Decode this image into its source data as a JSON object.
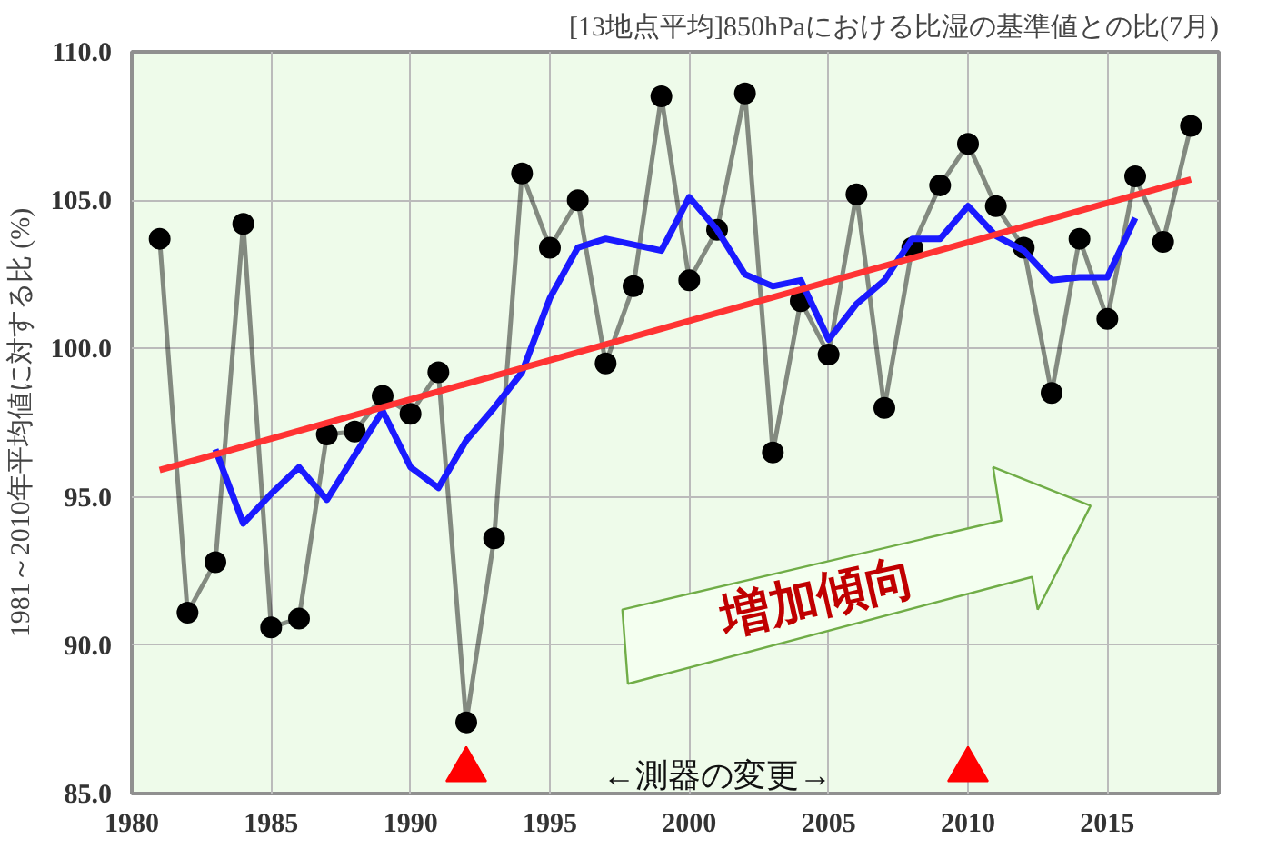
{
  "chart_data": {
    "type": "line",
    "title": "[13地点平均]850hPaにおける比湿の基準値との比(7月)",
    "ylabel": "1981～2010年平均値に対する比 (%)",
    "xlim": [
      1980,
      2019
    ],
    "xticks": [
      1980,
      1985,
      1990,
      1995,
      2000,
      2005,
      2010,
      2015
    ],
    "ylim": [
      85,
      110
    ],
    "yticks": [
      {
        "value": 85,
        "label": "85.0"
      },
      {
        "value": 90,
        "label": "90.0"
      },
      {
        "value": 95,
        "label": "95.0"
      },
      {
        "value": 100,
        "label": "100.0"
      },
      {
        "value": 105,
        "label": "105.0"
      },
      {
        "value": 110,
        "label": "110.0"
      }
    ],
    "grid": true,
    "line_style": "solid",
    "series": [
      {
        "color": "#000000",
        "marker": "circle",
        "x": [
          1981,
          1982,
          1983,
          1984,
          1985,
          1986,
          1987,
          1988,
          1989,
          1990,
          1991,
          1992,
          1993,
          1994,
          1995,
          1996,
          1997,
          1998,
          1999,
          2000,
          2001,
          2002,
          2003,
          2004,
          2005,
          2006,
          2007,
          2008,
          2009,
          2010,
          2011,
          2012,
          2013,
          2014,
          2015,
          2016,
          2017,
          2018
        ],
        "values": [
          103.7,
          91.1,
          92.8,
          104.2,
          90.6,
          90.9,
          97.1,
          97.2,
          98.4,
          97.8,
          99.2,
          87.4,
          93.6,
          105.9,
          103.4,
          105.0,
          99.5,
          102.1,
          108.5,
          102.3,
          104.0,
          108.6,
          96.5,
          101.6,
          99.8,
          105.2,
          98.0,
          103.4,
          105.5,
          106.9,
          104.8,
          103.4,
          98.5,
          103.7,
          101.0,
          105.8,
          103.6,
          107.5
        ]
      },
      {
        "color": "#1a1aff",
        "marker": "none",
        "x": [
          1983,
          1984,
          1985,
          1986,
          1987,
          1988,
          1989,
          1990,
          1991,
          1992,
          1993,
          1994,
          1995,
          1996,
          1997,
          1998,
          1999,
          2000,
          2001,
          2002,
          2003,
          2004,
          2005,
          2006,
          2007,
          2008,
          2009,
          2010,
          2011,
          2012,
          2013,
          2014,
          2015,
          2016
        ],
        "values": [
          96.6,
          94.1,
          95.1,
          96.0,
          94.9,
          96.4,
          97.9,
          96.0,
          95.3,
          96.9,
          98.0,
          99.2,
          101.7,
          103.4,
          103.7,
          103.5,
          103.3,
          105.1,
          104.0,
          102.5,
          102.1,
          102.3,
          100.3,
          101.5,
          102.3,
          103.7,
          103.7,
          104.8,
          103.8,
          103.3,
          102.3,
          102.4,
          102.4,
          104.4
        ]
      },
      {
        "color": "#ff3333",
        "marker": "none",
        "x": [
          1981,
          2018
        ],
        "values": [
          95.9,
          105.7
        ]
      },
      {
        "type": "scatter",
        "color": "#ff0000",
        "marker": "triangle",
        "x": [
          1992,
          2010
        ],
        "values": [
          85.8,
          85.8
        ]
      }
    ],
    "annotations": [
      "←測器の変更→",
      "増加傾向"
    ]
  }
}
